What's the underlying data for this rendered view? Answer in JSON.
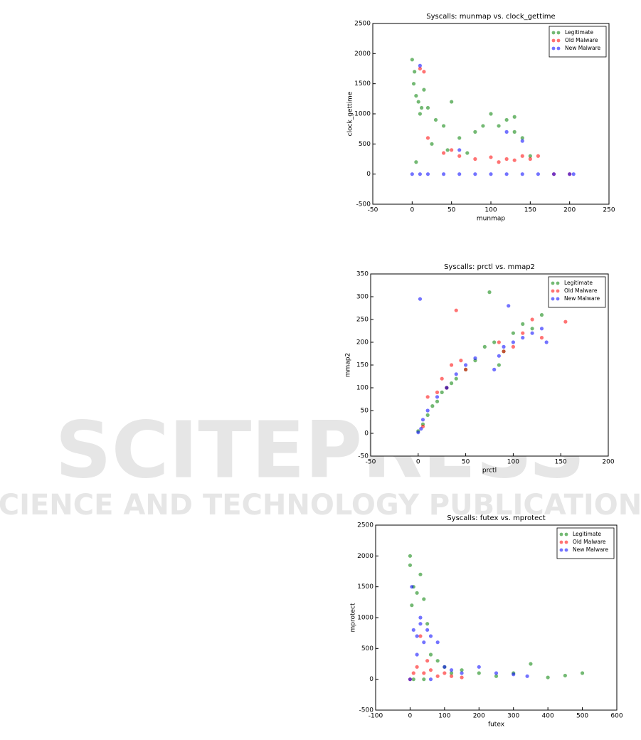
{
  "watermark": {
    "title": "SCITEPRESS",
    "subtitle": "SCIENCE AND TECHNOLOGY PUBLICATIONS"
  },
  "chart_data": [
    {
      "type": "scatter",
      "title": "Syscalls: munmap vs. clock_gettime",
      "x_label": "munmap",
      "y_label": "clock_gettime",
      "xlim": [
        -50,
        250
      ],
      "xticks": [
        -50,
        0,
        50,
        100,
        150,
        200,
        250
      ],
      "ylim": [
        -500,
        2500
      ],
      "yticks": [
        -500,
        0,
        500,
        1000,
        1500,
        2000,
        2500
      ],
      "legend": "upper right",
      "series": [
        {
          "name": "Legitimate",
          "color": "#008000",
          "x": [
            0,
            2,
            5,
            8,
            10,
            15,
            20,
            30,
            40,
            50,
            60,
            80,
            100,
            110,
            120,
            130,
            140,
            150,
            5,
            25,
            45,
            70,
            90,
            130,
            3,
            12
          ],
          "values": [
            1900,
            1500,
            1300,
            1200,
            1000,
            1400,
            1100,
            900,
            800,
            1200,
            600,
            700,
            1000,
            800,
            900,
            700,
            600,
            300,
            200,
            500,
            400,
            350,
            800,
            950,
            1700,
            1100
          ]
        },
        {
          "name": "Old Malware",
          "color": "#ff0000",
          "x": [
            10,
            20,
            40,
            60,
            80,
            100,
            110,
            120,
            130,
            140,
            150,
            160,
            180,
            200,
            15,
            50
          ],
          "values": [
            1750,
            600,
            350,
            300,
            250,
            280,
            200,
            250,
            230,
            300,
            250,
            300,
            0,
            0,
            1700,
            400
          ]
        },
        {
          "name": "New Malware",
          "color": "#0000ff",
          "x": [
            0,
            10,
            20,
            40,
            60,
            80,
            100,
            120,
            140,
            160,
            180,
            200,
            205,
            120,
            140,
            60,
            10
          ],
          "values": [
            0,
            0,
            0,
            0,
            0,
            0,
            0,
            0,
            0,
            0,
            0,
            0,
            0,
            700,
            550,
            400,
            1800
          ]
        }
      ]
    },
    {
      "type": "scatter",
      "title": "Syscalls: prctl vs. mmap2",
      "x_label": "prctl",
      "y_label": "mmap2",
      "xlim": [
        -50,
        200
      ],
      "xticks": [
        -50,
        0,
        50,
        100,
        150,
        200
      ],
      "ylim": [
        -50,
        350
      ],
      "yticks": [
        -50,
        0,
        50,
        100,
        150,
        200,
        250,
        300,
        350
      ],
      "legend": "upper right",
      "series": [
        {
          "name": "Legitimate",
          "color": "#008000",
          "x": [
            0,
            5,
            10,
            15,
            20,
            25,
            30,
            35,
            40,
            50,
            60,
            70,
            80,
            90,
            100,
            110,
            120,
            130,
            75,
            85
          ],
          "values": [
            5,
            20,
            40,
            60,
            70,
            90,
            100,
            110,
            120,
            140,
            160,
            190,
            200,
            180,
            220,
            240,
            230,
            260,
            310,
            150
          ]
        },
        {
          "name": "Old Malware",
          "color": "#ff0000",
          "x": [
            5,
            10,
            20,
            25,
            30,
            35,
            40,
            50,
            85,
            90,
            100,
            110,
            120,
            130,
            155,
            45
          ],
          "values": [
            15,
            80,
            90,
            120,
            100,
            150,
            270,
            140,
            200,
            180,
            190,
            220,
            250,
            210,
            245,
            160
          ]
        },
        {
          "name": "New Malware",
          "color": "#0000ff",
          "x": [
            0,
            3,
            5,
            10,
            20,
            30,
            40,
            50,
            60,
            80,
            85,
            90,
            100,
            110,
            120,
            130,
            135,
            2,
            95
          ],
          "values": [
            2,
            10,
            30,
            50,
            80,
            100,
            130,
            150,
            165,
            140,
            170,
            190,
            200,
            210,
            220,
            230,
            200,
            295,
            280
          ]
        }
      ]
    },
    {
      "type": "scatter",
      "title": "Syscalls: futex vs. mprotect",
      "x_label": "futex",
      "y_label": "mprotect",
      "xlim": [
        -100,
        600
      ],
      "xticks": [
        -100,
        0,
        100,
        200,
        300,
        400,
        500,
        600
      ],
      "ylim": [
        -500,
        2500
      ],
      "yticks": [
        -500,
        0,
        500,
        1000,
        1500,
        2000,
        2500
      ],
      "legend": "upper right",
      "series": [
        {
          "name": "Legitimate",
          "color": "#008000",
          "x": [
            0,
            0,
            5,
            10,
            20,
            30,
            40,
            50,
            60,
            80,
            100,
            120,
            150,
            200,
            250,
            300,
            350,
            400,
            450,
            500,
            10,
            40
          ],
          "values": [
            2000,
            1850,
            1200,
            1500,
            1400,
            1700,
            1300,
            900,
            400,
            300,
            200,
            100,
            150,
            100,
            50,
            100,
            250,
            30,
            60,
            100,
            0,
            0
          ]
        },
        {
          "name": "Old Malware",
          "color": "#ff0000",
          "x": [
            0,
            10,
            20,
            40,
            60,
            80,
            100,
            120,
            150,
            50,
            30
          ],
          "values": [
            0,
            100,
            200,
            100,
            150,
            50,
            100,
            50,
            30,
            300,
            700
          ]
        },
        {
          "name": "New Malware",
          "color": "#0000ff",
          "x": [
            0,
            5,
            10,
            20,
            30,
            40,
            50,
            60,
            80,
            100,
            120,
            150,
            200,
            250,
            300,
            340,
            30,
            20,
            60
          ],
          "values": [
            0,
            1500,
            800,
            700,
            900,
            600,
            800,
            700,
            600,
            200,
            150,
            100,
            200,
            100,
            80,
            50,
            1000,
            400,
            0
          ]
        }
      ]
    }
  ]
}
